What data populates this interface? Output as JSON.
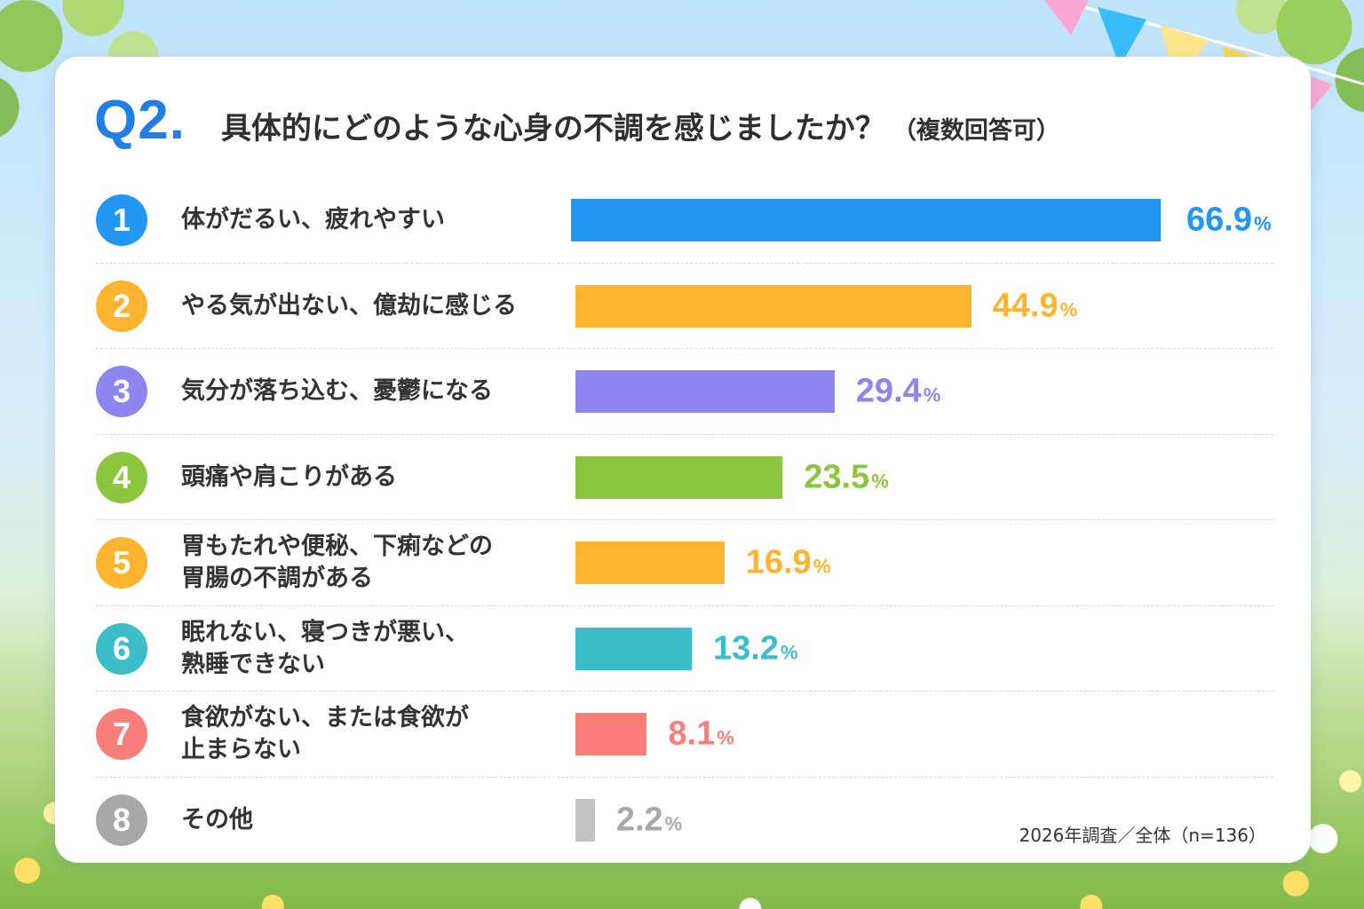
{
  "title": {
    "q_label": "Q2.",
    "question": "具体的にどのような心身の不調を感じましたか？",
    "note": "（複数回答可）"
  },
  "footnote": "2026年調査／全体（n=136）",
  "chart_data": {
    "type": "bar",
    "orientation": "horizontal",
    "title": "具体的にどのような心身の不調を感じましたか？（複数回答可）",
    "unit": "%",
    "value_range": [
      0,
      66.9
    ],
    "grid": false,
    "legend": "none",
    "items": [
      {
        "rank": "1",
        "label_lines": [
          "体がだるい、疲れやすい"
        ],
        "value": 66.9,
        "value_text": "66.9",
        "color": "#2196f3"
      },
      {
        "rank": "2",
        "label_lines": [
          "やる気が出ない、億劫に感じる"
        ],
        "value": 44.9,
        "value_text": "44.9",
        "color": "#ffb430"
      },
      {
        "rank": "3",
        "label_lines": [
          "気分が落ち込む、憂鬱になる"
        ],
        "value": 29.4,
        "value_text": "29.4",
        "color": "#8e86f0"
      },
      {
        "rank": "4",
        "label_lines": [
          "頭痛や肩こりがある"
        ],
        "value": 23.5,
        "value_text": "23.5",
        "color": "#8cc63f"
      },
      {
        "rank": "5",
        "label_lines": [
          "胃もたれや便秘、下痢などの",
          "胃腸の不調がある"
        ],
        "value": 16.9,
        "value_text": "16.9",
        "color": "#ffb430"
      },
      {
        "rank": "6",
        "label_lines": [
          "眠れない、寝つきが悪い、",
          "熟睡できない"
        ],
        "value": 13.2,
        "value_text": "13.2",
        "color": "#3dbdc9"
      },
      {
        "rank": "7",
        "label_lines": [
          "食欲がない、または食欲が",
          "止まらない"
        ],
        "value": 8.1,
        "value_text": "8.1",
        "color": "#fa7f7a"
      },
      {
        "rank": "8",
        "label_lines": [
          "その他"
        ],
        "value": 2.2,
        "value_text": "2.2",
        "color": "#c2c2c2"
      }
    ]
  }
}
